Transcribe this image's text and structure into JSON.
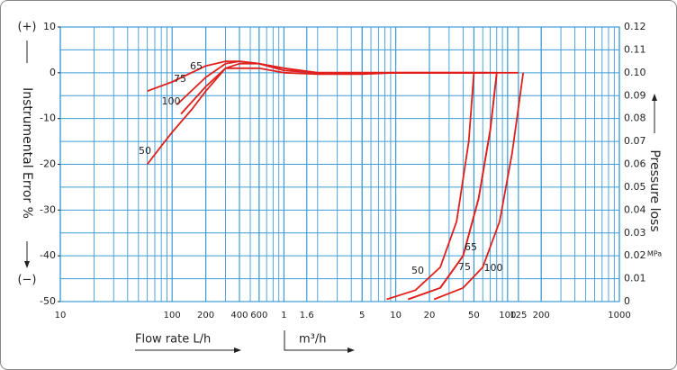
{
  "chart_data": {
    "type": "line",
    "x_scale": "log",
    "y_label": "Instrumental Error %",
    "y_label_top": "(+)",
    "y_label_bottom": "(−)",
    "y2_label": "Pressure loss",
    "y2_unit": "MPa",
    "x_label": "Flow rate  L/h",
    "x_label_2": "m³/h",
    "xlim": [
      10,
      1000000
    ],
    "xticks": [
      10,
      100,
      200,
      400,
      600,
      {
        "value": 1000,
        "label": "1"
      },
      {
        "value": 1600,
        "label": "1.6"
      },
      {
        "value": 5000,
        "label": "5"
      },
      {
        "value": 10000,
        "label": "10"
      },
      {
        "value": 20000,
        "label": "20"
      },
      {
        "value": 50000,
        "label": "50"
      },
      {
        "value": 100000,
        "label": "100"
      },
      {
        "value": 125000,
        "label": "125"
      },
      {
        "value": 200000,
        "label": "200"
      },
      {
        "value": 1000000,
        "label": "1000"
      }
    ],
    "ylim": [
      -50,
      10
    ],
    "yticks": [
      10,
      0,
      -10,
      -20,
      -30,
      -40,
      -50
    ],
    "y2lim": [
      0,
      0.12
    ],
    "y2ticks": [
      0,
      0.01,
      0.02,
      0.03,
      0.04,
      0.05,
      0.06,
      0.07,
      0.08,
      0.09,
      {
        "value": 0.1,
        "label": "0.10"
      },
      0.11,
      0.12
    ],
    "grid": true,
    "series": [
      {
        "name": "50",
        "color": "#e0201c",
        "x": [
          60,
          80,
          100,
          150,
          200,
          300,
          400,
          600,
          1000,
          2000,
          5000,
          10000,
          30000,
          50000
        ],
        "values": [
          -20,
          -16,
          -13,
          -8,
          -4,
          1,
          2,
          2,
          1,
          0,
          0,
          0,
          0,
          0
        ]
      },
      {
        "name": "65",
        "color": "#e0201c",
        "x": [
          60,
          100,
          200,
          300,
          400,
          600,
          1000,
          2000,
          5000,
          10000,
          30000,
          65000
        ],
        "values": [
          -4,
          -2,
          1.5,
          2.5,
          2.5,
          2,
          0.5,
          0,
          0,
          0,
          0,
          0
        ]
      },
      {
        "name": "75",
        "color": "#e0201c",
        "x": [
          110,
          200,
          300,
          400,
          600,
          1000,
          2000,
          5000,
          10000,
          30000,
          80000
        ],
        "values": [
          -7,
          -1,
          2,
          2.5,
          2,
          1,
          0,
          0,
          0,
          0,
          0
        ]
      },
      {
        "name": "100",
        "color": "#e0201c",
        "x": [
          120,
          200,
          300,
          400,
          600,
          1000,
          2000,
          5000,
          10000,
          30000,
          125000
        ],
        "values": [
          -9,
          -3,
          1,
          1,
          1,
          0,
          -0.3,
          -0.3,
          0,
          0,
          0
        ]
      },
      {
        "name": "50",
        "color": "#e0201c",
        "axis": "y2",
        "x": [
          8300,
          15000,
          25000,
          35000,
          45000,
          50000
        ],
        "values": [
          0.001,
          0.005,
          0.015,
          0.035,
          0.07,
          0.1
        ]
      },
      {
        "name": "65",
        "color": "#e0201c",
        "axis": "y2",
        "x": [
          12900,
          25000,
          40000,
          55000,
          70000,
          80000
        ],
        "values": [
          0.001,
          0.006,
          0.02,
          0.045,
          0.075,
          0.1
        ]
      },
      {
        "name": "75",
        "color": "#e0201c",
        "axis": "y2",
        "x": [
          12900,
          25000,
          40000,
          55000,
          70000,
          80000
        ],
        "values": [
          0.001,
          0.006,
          0.02,
          0.045,
          0.075,
          0.1
        ]
      },
      {
        "name": "100",
        "color": "#e0201c",
        "axis": "y2",
        "x": [
          22000,
          40000,
          60000,
          85000,
          110000,
          138000
        ],
        "values": [
          0.001,
          0.006,
          0.015,
          0.035,
          0.065,
          0.1
        ]
      }
    ]
  }
}
